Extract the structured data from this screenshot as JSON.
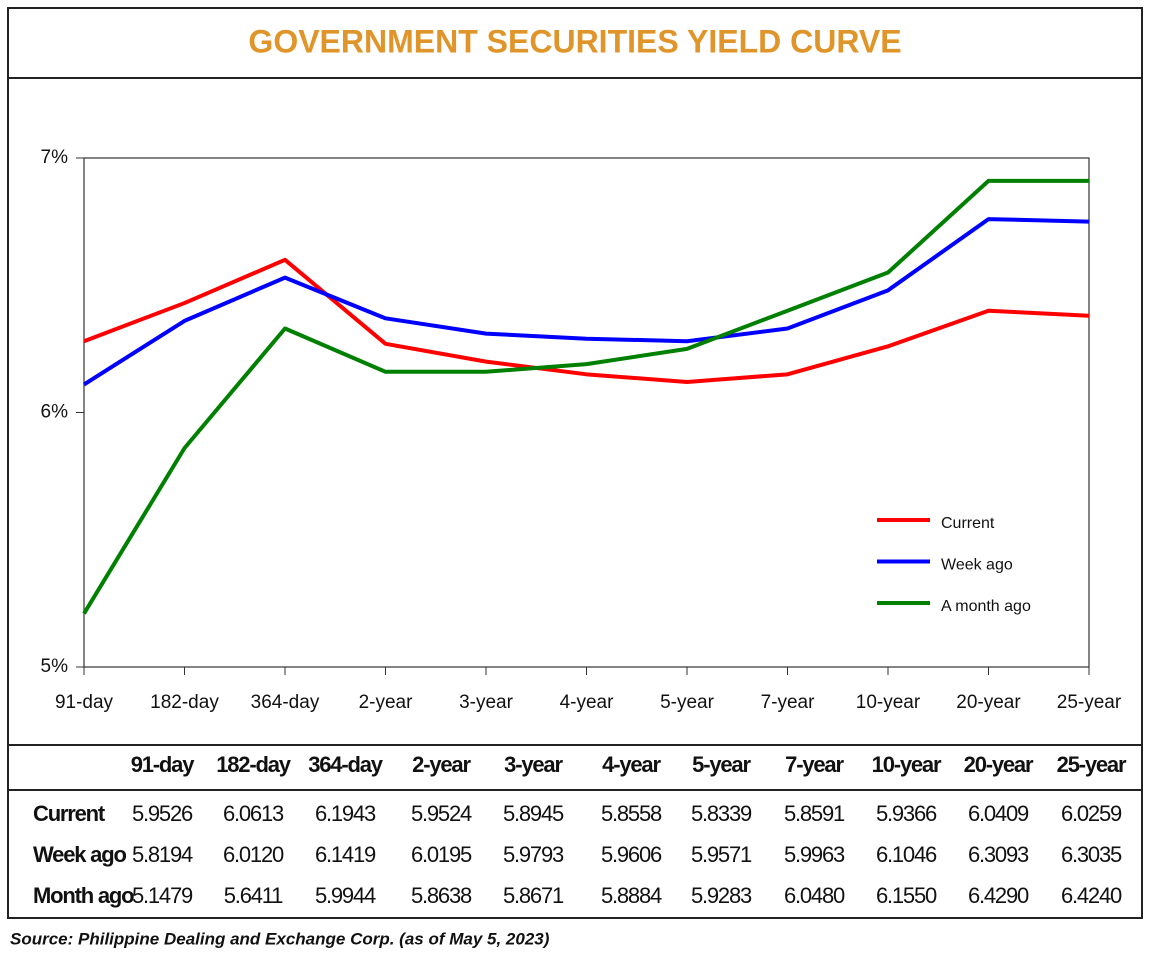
{
  "chart_data": {
    "type": "line",
    "title": "GOVERNMENT SECURITIES YIELD CURVE",
    "categories": [
      "91-day",
      "182-day",
      "364-day",
      "2-year",
      "3-year",
      "4-year",
      "5-year",
      "7-year",
      "10-year",
      "20-year",
      "25-year"
    ],
    "series": [
      {
        "name": "Current",
        "color": "#ff0000",
        "values": [
          6.28,
          6.43,
          6.6,
          6.27,
          6.2,
          6.15,
          6.12,
          6.15,
          6.26,
          6.4,
          6.38
        ]
      },
      {
        "name": "Week ago",
        "color": "#0000ff",
        "values": [
          6.11,
          6.36,
          6.53,
          6.37,
          6.31,
          6.29,
          6.28,
          6.33,
          6.48,
          6.76,
          6.75
        ]
      },
      {
        "name": "A month ago",
        "color": "#008000",
        "values": [
          5.21,
          5.86,
          6.33,
          6.16,
          6.16,
          6.19,
          6.25,
          6.4,
          6.55,
          6.91,
          6.91
        ]
      }
    ],
    "ylim": [
      5,
      7
    ],
    "yticks": [
      {
        "value": 5,
        "label": "5%"
      },
      {
        "value": 6,
        "label": "6%"
      },
      {
        "value": 7,
        "label": "7%"
      }
    ],
    "legend": "lower-right"
  },
  "table": {
    "header": [
      "91-day",
      "182-day",
      "364-day",
      "2-year",
      "3-year",
      "4-year",
      "5-year",
      "7-year",
      "10-year",
      "20-year",
      "25-year"
    ],
    "rows": [
      {
        "label": "Current",
        "cells": [
          "5.9526",
          "6.0613",
          "6.1943",
          "5.9524",
          "5.8945",
          "5.8558",
          "5.8339",
          "5.8591",
          "5.9366",
          "6.0409",
          "6.0259"
        ]
      },
      {
        "label": "Week ago",
        "cells": [
          "5.8194",
          "6.0120",
          "6.1419",
          "6.0195",
          "5.9793",
          "5.9606",
          "5.9571",
          "5.9963",
          "6.1046",
          "6.3093",
          "6.3035"
        ]
      },
      {
        "label": "Month ago",
        "cells": [
          "5.1479",
          "5.6411",
          "5.9944",
          "5.8638",
          "5.8671",
          "5.8884",
          "5.9283",
          "6.0480",
          "6.1550",
          "6.4290",
          "6.4240"
        ]
      }
    ]
  },
  "source": "Source: Philippine Dealing and Exchange Corp. (as of May 5, 2023)"
}
